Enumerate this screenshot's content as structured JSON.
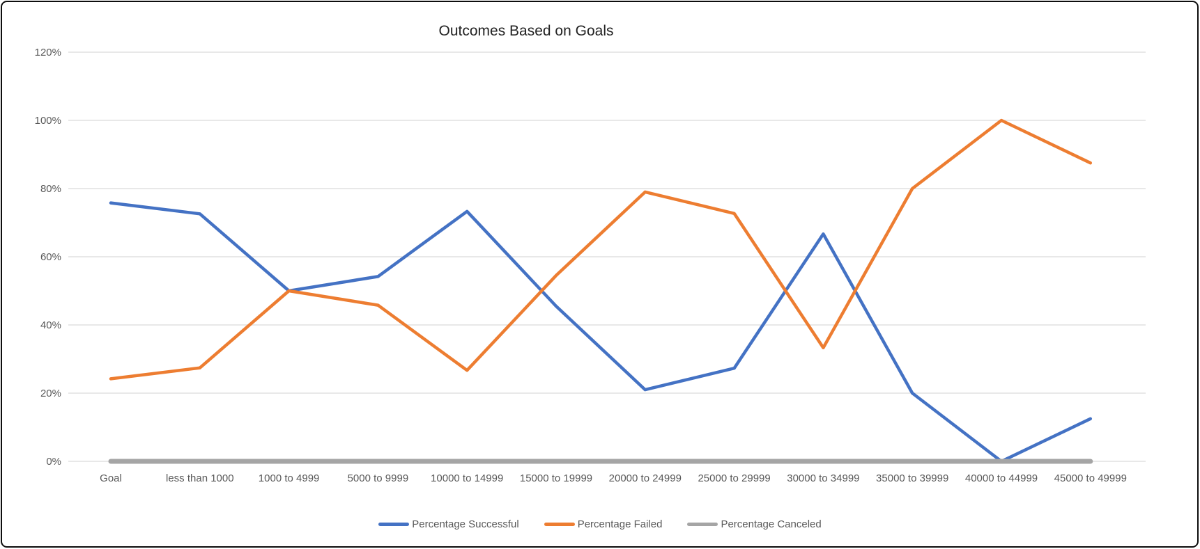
{
  "chart_data": {
    "type": "line",
    "title": "Outcomes Based on Goals",
    "categories": [
      "Goal",
      "less than 1000",
      "1000 to 4999",
      "5000 to 9999",
      "10000 to 14999",
      "15000 to 19999",
      "20000 to 24999",
      "25000 to 29999",
      "30000 to 34999",
      "35000 to 39999",
      "40000 to 44999",
      "45000 to 49999"
    ],
    "series": [
      {
        "name": "Percentage Successful",
        "color": "#4472C4",
        "values": [
          75.8,
          72.6,
          50,
          54.2,
          73.3,
          45.5,
          21,
          27.3,
          66.7,
          20,
          0,
          12.5
        ]
      },
      {
        "name": "Percentage Failed",
        "color": "#ED7D31",
        "values": [
          24.2,
          27.4,
          50,
          45.8,
          26.7,
          54.5,
          79,
          72.7,
          33.3,
          80,
          100,
          87.5
        ]
      },
      {
        "name": "Percentage Canceled",
        "color": "#A5A5A5",
        "values": [
          0,
          0,
          0,
          0,
          0,
          0,
          0,
          0,
          0,
          0,
          0,
          0
        ]
      }
    ],
    "y_axis": {
      "min": 0,
      "max": 120,
      "step": 20,
      "tick_labels": [
        "0%",
        "20%",
        "40%",
        "60%",
        "80%",
        "100%",
        "120%"
      ]
    },
    "x_axis": {
      "label": ""
    },
    "grid": true,
    "gridline_color": "#D9D9D9",
    "axis_text_color": "#595959",
    "legend_position": "bottom"
  }
}
